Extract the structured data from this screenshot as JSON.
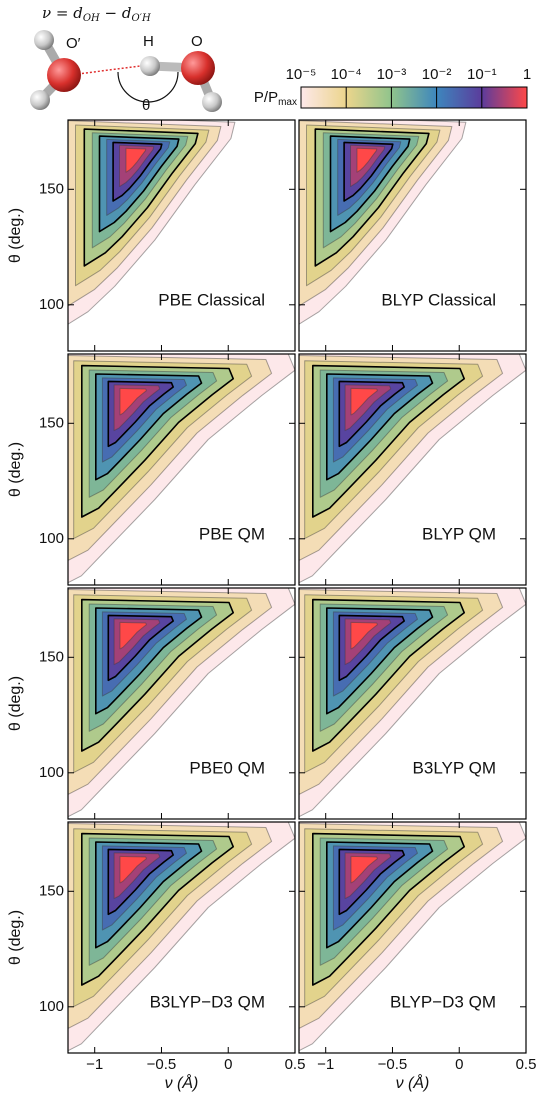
{
  "diagram": {
    "formula": [
      "ν = d",
      "OH",
      " − d",
      "O′H"
    ],
    "atoms": [
      "O′",
      "H",
      "O"
    ],
    "angle": "θ"
  },
  "colorbar": {
    "label": "P/P",
    "label_sub": "max",
    "scale": "log",
    "clim": [
      1e-05,
      1
    ],
    "ticks": [
      {
        "value": 1e-05,
        "label": "10⁻⁵"
      },
      {
        "value": 0.0001,
        "label": "10⁻⁴"
      },
      {
        "value": 0.001,
        "label": "10⁻³"
      },
      {
        "value": 0.01,
        "label": "10⁻²"
      },
      {
        "value": 0.1,
        "label": "10⁻¹"
      },
      1
    ],
    "colormap": [
      "#fde8ea",
      "#ecd58c",
      "#90c48c",
      "#3d86bd",
      "#5b3c9c",
      "#ff4848"
    ]
  },
  "chart_data": [
    {
      "type": "contour",
      "title": "PBE Classical",
      "ylabel": "θ (deg.)",
      "xlim": [
        -1.2,
        0.5
      ],
      "ylim": [
        80,
        180
      ],
      "xticks": [
        -1,
        -0.5,
        0,
        0.5
      ],
      "yticks": [
        100,
        150
      ]
    },
    {
      "type": "contour",
      "title": "BLYP Classical",
      "xlim": [
        -1.2,
        0.5
      ],
      "ylim": [
        80,
        180
      ],
      "xticks": [
        -1,
        -0.5,
        0,
        0.5
      ],
      "yticks": [
        100,
        150
      ]
    },
    {
      "type": "contour",
      "title": "PBE QM",
      "ylabel": "θ (deg.)",
      "xlim": [
        -1.2,
        0.5
      ],
      "ylim": [
        80,
        180
      ],
      "xticks": [
        -1,
        -0.5,
        0,
        0.5
      ],
      "yticks": [
        100,
        150
      ]
    },
    {
      "type": "contour",
      "title": "BLYP QM",
      "xlim": [
        -1.2,
        0.5
      ],
      "ylim": [
        80,
        180
      ],
      "xticks": [
        -1,
        -0.5,
        0,
        0.5
      ],
      "yticks": [
        100,
        150
      ]
    },
    {
      "type": "contour",
      "title": "PBE0 QM",
      "ylabel": "θ (deg.)",
      "xlim": [
        -1.2,
        0.5
      ],
      "ylim": [
        80,
        180
      ],
      "xticks": [
        -1,
        -0.5,
        0,
        0.5
      ],
      "yticks": [
        100,
        150
      ]
    },
    {
      "type": "contour",
      "title": "B3LYP QM",
      "xlim": [
        -1.2,
        0.5
      ],
      "ylim": [
        80,
        180
      ],
      "xticks": [
        -1,
        -0.5,
        0,
        0.5
      ],
      "yticks": [
        100,
        150
      ]
    },
    {
      "type": "contour",
      "title": "B3LYP−D3 QM",
      "ylabel": "θ (deg.)",
      "xlabel": "ν (Å)",
      "xlim": [
        -1.2,
        0.5
      ],
      "ylim": [
        80,
        180
      ],
      "xticks": [
        {
          "value": -1,
          "label": "−1"
        },
        {
          "value": -0.5,
          "label": "−0.5"
        },
        0,
        0.5
      ],
      "yticks": [
        100,
        150
      ]
    },
    {
      "type": "contour",
      "title": "BLYP−D3 QM",
      "xlabel": "ν (Å)",
      "xlim": [
        -1.2,
        0.5
      ],
      "ylim": [
        80,
        180
      ],
      "xticks": [
        {
          "value": -1,
          "label": "−1"
        },
        {
          "value": -0.5,
          "label": "−0.5"
        },
        0,
        0.5
      ],
      "yticks": [
        100,
        150
      ]
    }
  ]
}
